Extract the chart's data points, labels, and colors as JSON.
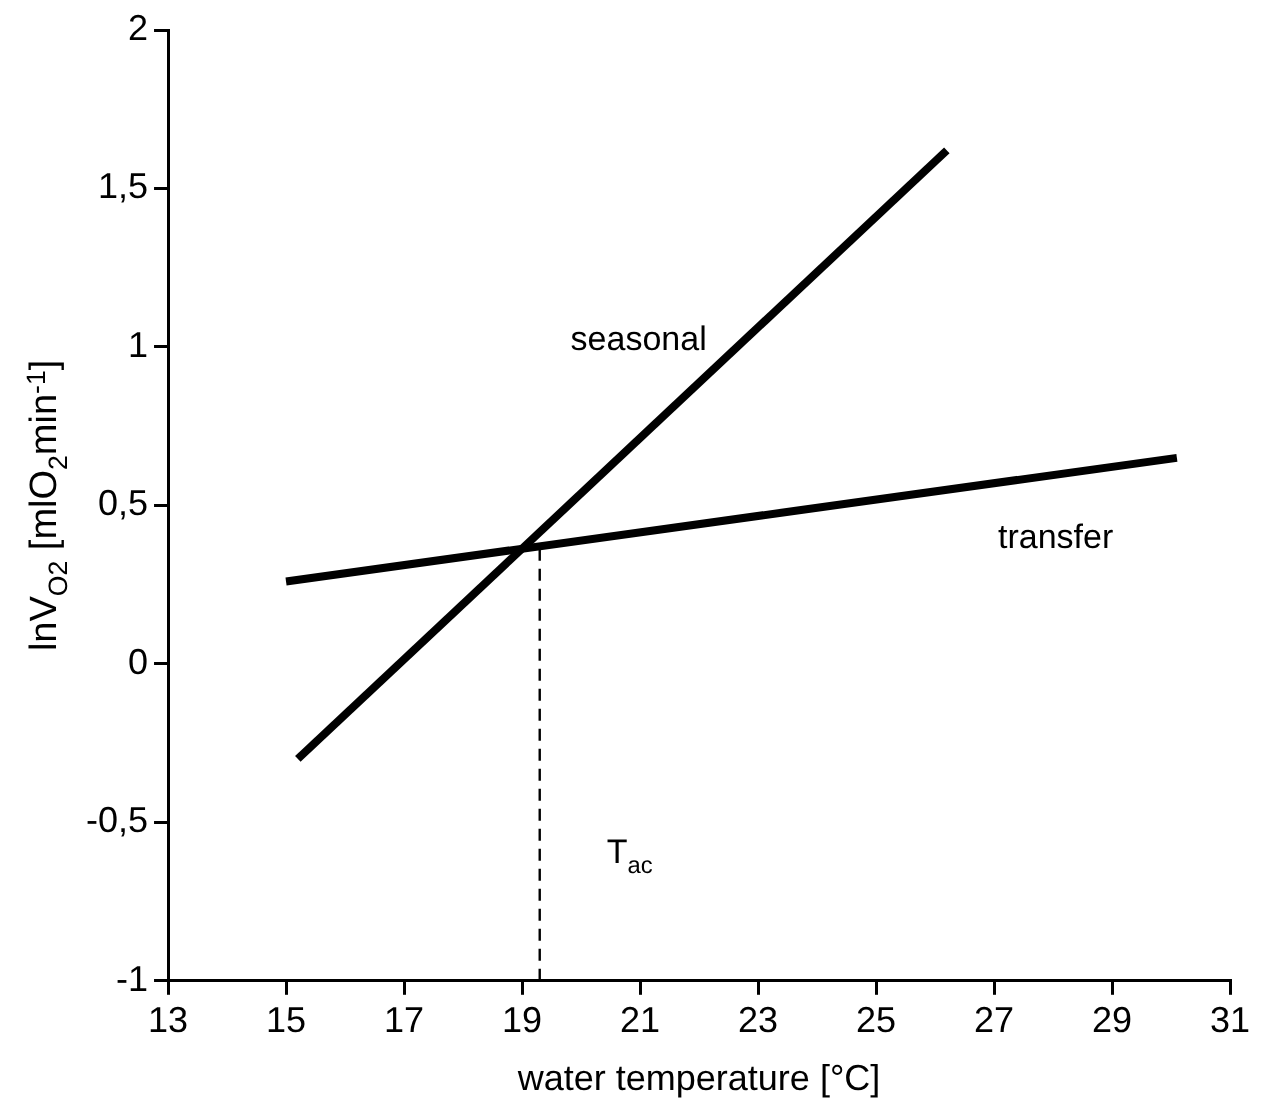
{
  "chart_data": {
    "type": "line",
    "xlabel": "water temperature [°C]",
    "ylabel": "lnV$_{O2}$ [mlO$_{2}$min$^{-1}$]",
    "xlim": [
      13,
      31
    ],
    "xticks": [
      13,
      15,
      17,
      19,
      21,
      23,
      25,
      27,
      29,
      31
    ],
    "ylim": [
      -1,
      2
    ],
    "yticks": [
      {
        "value": -1,
        "label": "-1"
      },
      {
        "value": -0.5,
        "label": "-0,5"
      },
      {
        "value": 0,
        "label": "0"
      },
      {
        "value": 0.5,
        "label": "0,5"
      },
      {
        "value": 1,
        "label": "1"
      },
      {
        "value": 1.5,
        "label": "1,5"
      },
      {
        "value": 2,
        "label": "2"
      }
    ],
    "series": [
      {
        "name": "seasonal",
        "color": "#000000",
        "x": [
          15.2,
          26.2
        ],
        "values": [
          -0.3,
          1.62
        ]
      },
      {
        "name": "transfer",
        "color": "#000000",
        "x": [
          15,
          30.1
        ],
        "values": [
          0.26,
          0.65
        ]
      },
      {
        "name": "T$_{ac}$",
        "color": "#000000",
        "x": [
          19.3,
          19.3
        ],
        "values": [
          -1,
          0.37
        ],
        "line_style": "dashed"
      }
    ],
    "grid": false,
    "legend": false,
    "marker": "none"
  }
}
